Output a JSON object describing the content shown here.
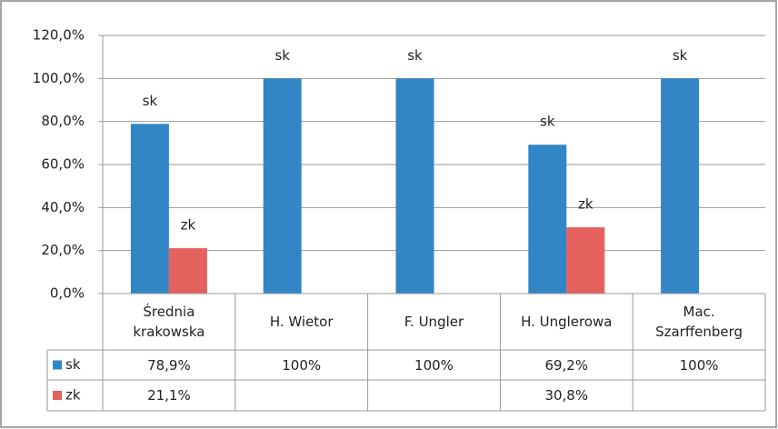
{
  "chart_data": {
    "type": "bar",
    "categories": [
      "Średnia\nkrakowska",
      "H. Wietor",
      "F. Ungler",
      "H. Unglerowa",
      "Mac.\nSzarffenberg"
    ],
    "series": [
      {
        "name": "sk",
        "color": "#3286c6",
        "values": [
          78.9,
          100,
          100,
          69.2,
          100
        ],
        "value_labels": [
          "78,9%",
          "100%",
          "100%",
          "69,2%",
          "100%"
        ]
      },
      {
        "name": "zk",
        "color": "#e4615d",
        "values": [
          21.1,
          null,
          null,
          30.8,
          null
        ],
        "value_labels": [
          "21,1%",
          null,
          null,
          "30,8%",
          null
        ]
      }
    ],
    "ylim": [
      0,
      120
    ],
    "yticks": [
      {
        "value": 0,
        "label": "0,0%"
      },
      {
        "value": 20,
        "label": "20,0%"
      },
      {
        "value": 40,
        "label": "40,0%"
      },
      {
        "value": 60,
        "label": "60,0%"
      },
      {
        "value": 80,
        "label": "80,0%"
      },
      {
        "value": 100,
        "label": "100,0%"
      },
      {
        "value": 120,
        "label": "120,0%"
      }
    ],
    "grid": true
  }
}
